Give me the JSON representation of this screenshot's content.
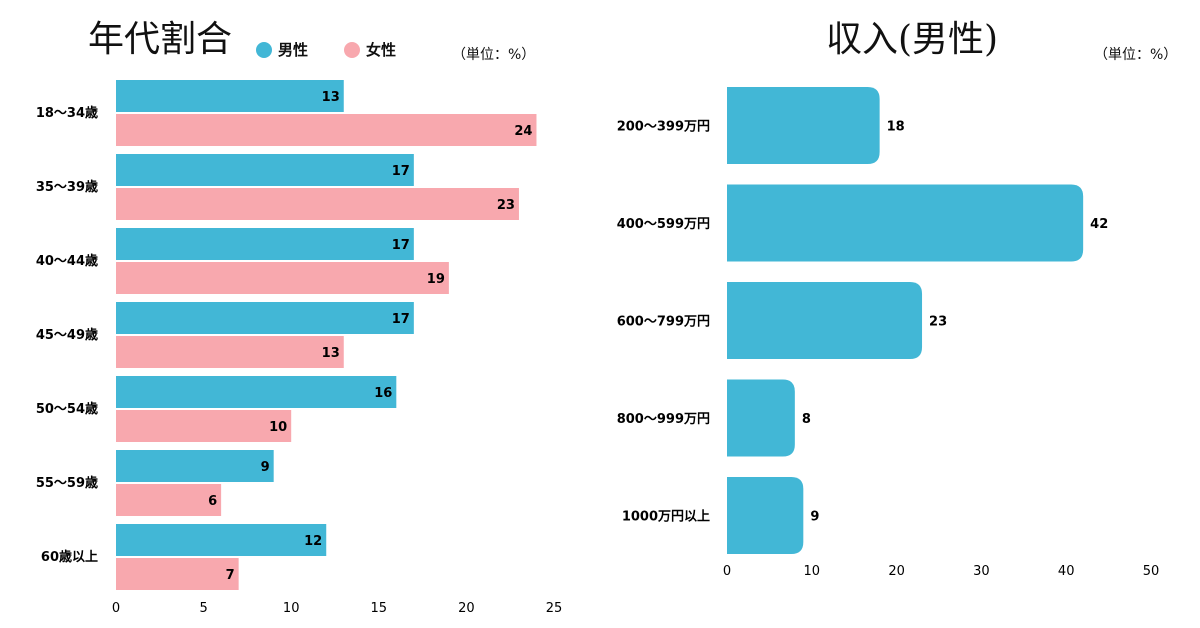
{
  "chart_data": [
    {
      "type": "bar",
      "orientation": "horizontal",
      "title": "年代割合",
      "unit_note": "（単位：%）",
      "categories": [
        "18〜34歳",
        "35〜39歳",
        "40〜44歳",
        "45〜49歳",
        "50〜54歳",
        "55〜59歳",
        "60歳以上"
      ],
      "series": [
        {
          "name": "男性",
          "color": "#42b7d6",
          "values": [
            13,
            17,
            17,
            17,
            16,
            9,
            12
          ]
        },
        {
          "name": "女性",
          "color": "#f8a8ae",
          "values": [
            24,
            23,
            19,
            13,
            10,
            6,
            7
          ]
        }
      ],
      "xlim": [
        0,
        25
      ],
      "xticks": [
        0,
        5,
        10,
        15,
        20,
        25
      ],
      "legend": "top",
      "grid": false
    },
    {
      "type": "bar",
      "orientation": "horizontal",
      "title": "収入(男性)",
      "unit_note": "（単位：%）",
      "categories": [
        "200〜399万円",
        "400〜599万円",
        "600〜799万円",
        "800〜999万円",
        "1000万円以上"
      ],
      "series": [
        {
          "color": "#42b7d6",
          "values": [
            18,
            42,
            23,
            8,
            9
          ]
        }
      ],
      "xlim": [
        0,
        50
      ],
      "xticks": [
        0,
        10,
        20,
        30,
        40,
        50
      ],
      "grid": false
    }
  ]
}
